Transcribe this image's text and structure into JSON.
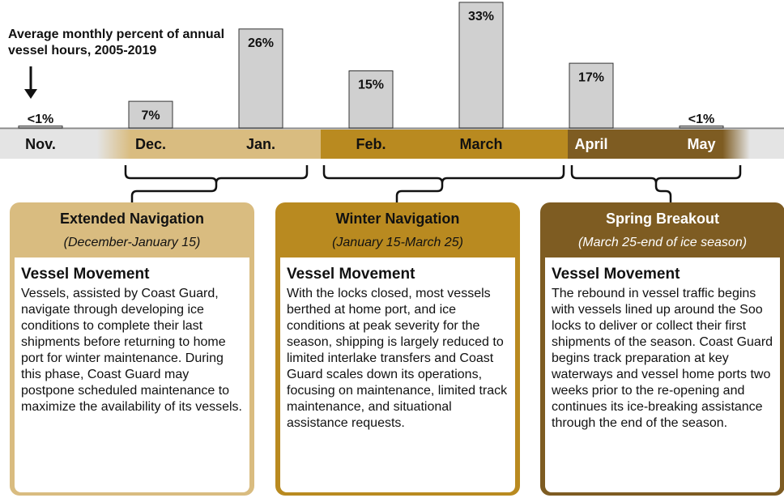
{
  "chart_data": {
    "type": "bar",
    "title": "Average monthly percent of annual vessel hours, 2005-2019",
    "categories": [
      "Nov.",
      "Dec.",
      "Jan.",
      "Feb.",
      "March",
      "April",
      "May"
    ],
    "values": [
      0.5,
      7,
      26,
      15,
      33,
      17,
      0.5
    ],
    "value_labels": [
      "<1%",
      "7%",
      "26%",
      "15%",
      "33%",
      "17%",
      "<1%"
    ],
    "color": "#d0d0d0"
  },
  "phases": [
    {
      "title": "Extended Navigation",
      "subtitle": "(December-January 15)",
      "heading": "Vessel Movement",
      "body": "Vessels, assisted by Coast Guard, navigate through developing ice conditions to complete their last shipments before returning to home port for winter maintenance. During this phase, Coast Guard may postpone scheduled maintenance to maximize the availability of its vessels."
    },
    {
      "title": "Winter Navigation",
      "subtitle": "(January 15-March 25)",
      "heading": "Vessel Movement",
      "body": "With the locks closed, most vessels berthed at home port, and ice conditions at peak severity for the season, shipping is largely reduced to limited interlake transfers and Coast Guard scales down its operations, focusing on maintenance, limited track maintenance, and situational assistance requests."
    },
    {
      "title": "Spring Breakout",
      "subtitle": "(March 25-end of ice season)",
      "heading": "Vessel Movement",
      "body": "The rebound in vessel traffic begins with vessels lined up around the Soo locks to deliver or collect their first shipments of the season. Coast Guard begins track preparation at key waterways and vessel home ports two weeks prior to the re-opening and continues its ice-breaking assistance through the end of the season."
    }
  ]
}
